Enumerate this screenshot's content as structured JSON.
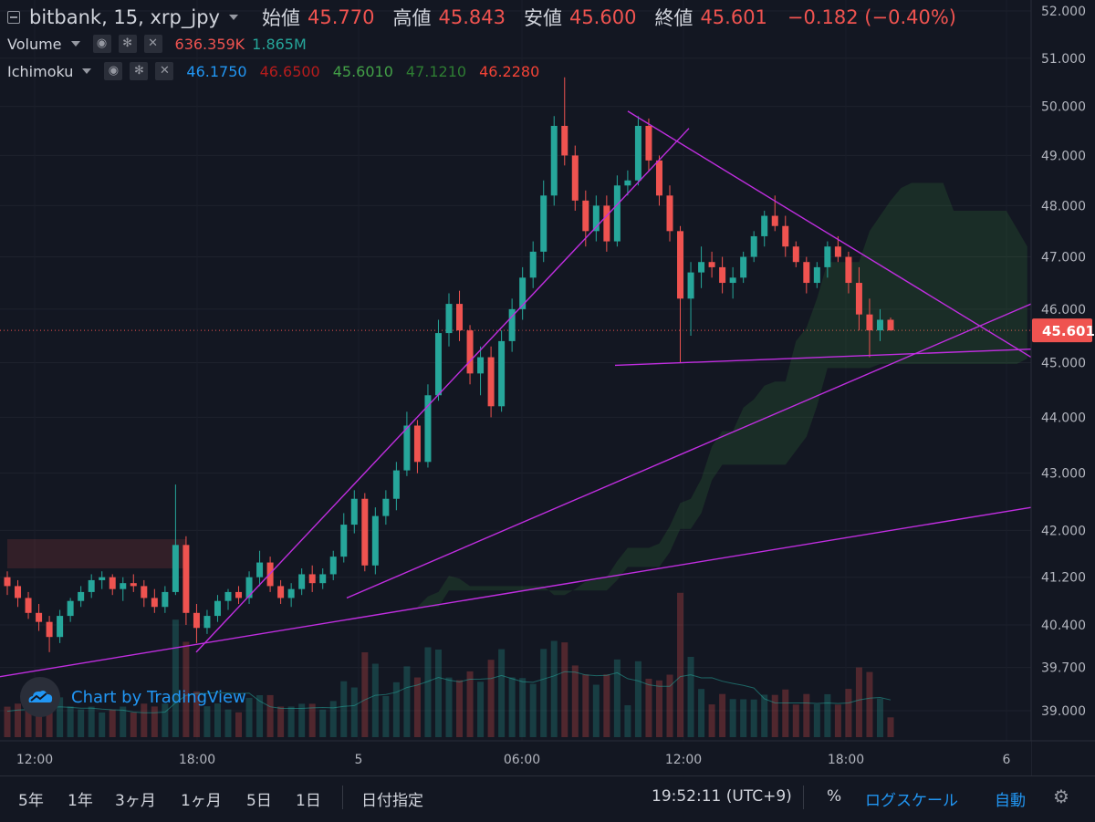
{
  "header": {
    "symbol": "bitbank, 15, xrp_jpy",
    "open_label": "始値",
    "open": "45.770",
    "high_label": "高値",
    "high": "45.843",
    "low_label": "安値",
    "low": "45.600",
    "close_label": "終値",
    "close": "45.601",
    "change": "−0.182 (−0.40%)"
  },
  "volume": {
    "name": "Volume",
    "v1": "636.359K",
    "v2": "1.865M"
  },
  "ichimoku": {
    "name": "Ichimoku",
    "v1": "46.1750",
    "v2": "46.6500",
    "v3": "45.6010",
    "v4": "47.1210",
    "v5": "46.2280"
  },
  "watermark": "Chart by TradingView",
  "bottom": {
    "ranges": [
      "5年",
      "1年",
      "3ヶ月",
      "1ヶ月",
      "5日",
      "1日"
    ],
    "date_select": "日付指定",
    "time": "19:52:11 (UTC+9)",
    "percent": "%",
    "log_scale": "ログスケール",
    "auto": "自動"
  },
  "colors": {
    "background": "#131722",
    "up": "#26a69a",
    "down": "#ef5350",
    "trendline": "#c02ee0",
    "cloud_bear": "#4a1f24",
    "cloud_bull": "#15301f",
    "tenkan": "#2962ff",
    "kijun": "#b71c1c",
    "chikou": "#43a047",
    "senkou_a": "#388e3c",
    "senkou_b": "#f44336"
  },
  "chart_data": {
    "type": "candlestick",
    "interval": "15",
    "price_axis": {
      "scale": "log",
      "ticks": [
        "52.000",
        "51.000",
        "50.000",
        "49.000",
        "48.000",
        "47.000",
        "46.000",
        "45.000",
        "44.000",
        "43.000",
        "42.000",
        "41.200",
        "40.400",
        "39.700",
        "39.000"
      ],
      "last_price": "45.601"
    },
    "time_axis": {
      "ticks": [
        "12:00",
        "18:00",
        "5",
        "06:00",
        "12:00",
        "18:00",
        "6"
      ]
    },
    "price_range_note": "approx 39.0 - 50.7",
    "candles_approx": [
      [
        41.2,
        41.3,
        40.9,
        41.05
      ],
      [
        41.05,
        41.15,
        40.7,
        40.85
      ],
      [
        40.85,
        40.95,
        40.5,
        40.6
      ],
      [
        40.6,
        40.75,
        40.3,
        40.45
      ],
      [
        40.45,
        40.55,
        39.95,
        40.2
      ],
      [
        40.2,
        40.65,
        40.1,
        40.55
      ],
      [
        40.55,
        40.85,
        40.45,
        40.8
      ],
      [
        40.8,
        41.05,
        40.7,
        40.95
      ],
      [
        40.95,
        41.25,
        40.85,
        41.15
      ],
      [
        41.15,
        41.3,
        41.0,
        41.2
      ],
      [
        41.2,
        41.25,
        40.9,
        41.0
      ],
      [
        41.0,
        41.2,
        40.8,
        41.1
      ],
      [
        41.1,
        41.25,
        40.95,
        41.05
      ],
      [
        41.05,
        41.15,
        40.7,
        40.85
      ],
      [
        40.85,
        41.0,
        40.6,
        40.7
      ],
      [
        40.7,
        41.05,
        40.6,
        40.95
      ],
      [
        40.95,
        42.8,
        40.9,
        41.75
      ],
      [
        41.75,
        41.9,
        40.4,
        40.6
      ],
      [
        40.6,
        40.75,
        40.1,
        40.35
      ],
      [
        40.35,
        40.65,
        40.25,
        40.55
      ],
      [
        40.55,
        40.9,
        40.45,
        40.8
      ],
      [
        40.8,
        41.0,
        40.65,
        40.95
      ],
      [
        40.95,
        41.05,
        40.75,
        40.85
      ],
      [
        40.85,
        41.3,
        40.75,
        41.2
      ],
      [
        41.2,
        41.65,
        41.05,
        41.45
      ],
      [
        41.45,
        41.55,
        40.95,
        41.05
      ],
      [
        41.05,
        41.15,
        40.75,
        40.85
      ],
      [
        40.85,
        41.1,
        40.7,
        41.0
      ],
      [
        41.0,
        41.35,
        40.9,
        41.25
      ],
      [
        41.25,
        41.4,
        40.95,
        41.1
      ],
      [
        41.1,
        41.35,
        41.0,
        41.25
      ],
      [
        41.25,
        41.65,
        41.15,
        41.55
      ],
      [
        41.55,
        42.3,
        41.45,
        42.1
      ],
      [
        42.1,
        42.7,
        41.95,
        42.55
      ],
      [
        42.55,
        42.65,
        41.3,
        41.4
      ],
      [
        41.4,
        42.4,
        41.25,
        42.25
      ],
      [
        42.25,
        42.7,
        42.1,
        42.55
      ],
      [
        42.55,
        43.2,
        42.35,
        43.05
      ],
      [
        43.05,
        44.1,
        42.95,
        43.85
      ],
      [
        43.85,
        43.95,
        43.0,
        43.2
      ],
      [
        43.2,
        44.6,
        43.1,
        44.4
      ],
      [
        44.4,
        45.8,
        44.3,
        45.55
      ],
      [
        45.55,
        46.3,
        45.3,
        46.1
      ],
      [
        46.1,
        46.35,
        45.4,
        45.6
      ],
      [
        45.6,
        45.7,
        44.6,
        44.8
      ],
      [
        44.8,
        45.3,
        44.4,
        45.1
      ],
      [
        45.1,
        45.3,
        44.0,
        44.2
      ],
      [
        44.2,
        45.6,
        44.1,
        45.4
      ],
      [
        45.4,
        46.2,
        45.2,
        46.0
      ],
      [
        46.0,
        46.8,
        45.8,
        46.6
      ],
      [
        46.6,
        47.3,
        46.4,
        47.1
      ],
      [
        47.1,
        48.5,
        46.9,
        48.2
      ],
      [
        48.2,
        49.8,
        48.0,
        49.6
      ],
      [
        49.6,
        50.6,
        48.8,
        49.0
      ],
      [
        49.0,
        49.2,
        47.9,
        48.1
      ],
      [
        48.1,
        48.3,
        47.2,
        47.5
      ],
      [
        47.5,
        48.2,
        47.3,
        48.0
      ],
      [
        48.0,
        48.2,
        47.1,
        47.3
      ],
      [
        47.3,
        48.6,
        47.2,
        48.4
      ],
      [
        48.4,
        48.7,
        48.2,
        48.5
      ],
      [
        48.5,
        49.8,
        48.4,
        49.6
      ],
      [
        49.6,
        49.75,
        48.7,
        48.9
      ],
      [
        48.9,
        49.0,
        48.0,
        48.2
      ],
      [
        48.2,
        48.4,
        47.3,
        47.5
      ],
      [
        47.5,
        47.6,
        45.0,
        46.2
      ],
      [
        46.2,
        46.9,
        45.5,
        46.7
      ],
      [
        46.7,
        47.2,
        46.4,
        46.9
      ],
      [
        46.9,
        47.1,
        46.6,
        46.8
      ],
      [
        46.8,
        47.0,
        46.3,
        46.5
      ],
      [
        46.5,
        46.8,
        46.2,
        46.6
      ],
      [
        46.6,
        47.1,
        46.5,
        47.0
      ],
      [
        47.0,
        47.5,
        46.9,
        47.4
      ],
      [
        47.4,
        47.9,
        47.2,
        47.8
      ],
      [
        47.8,
        48.2,
        47.5,
        47.6
      ],
      [
        47.6,
        47.8,
        47.0,
        47.2
      ],
      [
        47.2,
        47.3,
        46.8,
        46.9
      ],
      [
        46.9,
        47.0,
        46.3,
        46.5
      ],
      [
        46.5,
        46.9,
        46.4,
        46.8
      ],
      [
        46.8,
        47.3,
        46.6,
        47.2
      ],
      [
        47.2,
        47.4,
        46.9,
        47.0
      ],
      [
        47.0,
        47.1,
        46.3,
        46.5
      ],
      [
        46.5,
        46.8,
        45.6,
        45.9
      ],
      [
        45.9,
        46.2,
        45.1,
        45.6
      ],
      [
        45.6,
        46.0,
        45.4,
        45.8
      ],
      [
        45.8,
        45.84,
        45.6,
        45.6
      ]
    ]
  }
}
